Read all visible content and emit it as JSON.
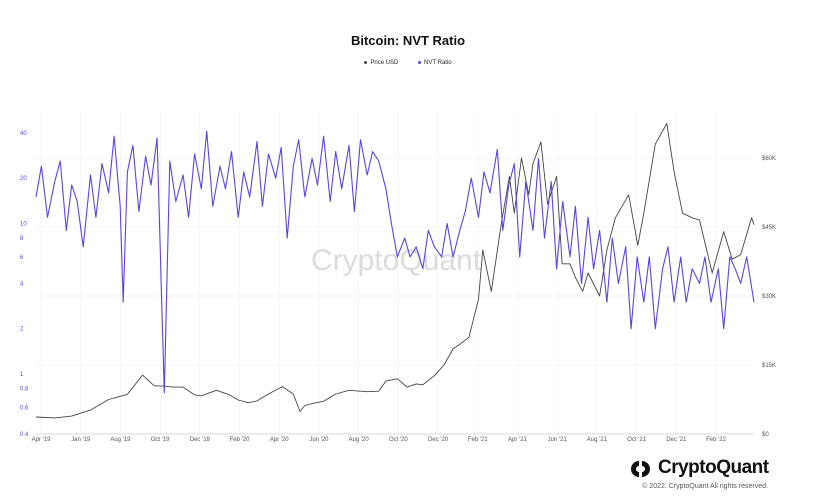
{
  "colors": {
    "nvt": "#5b44e0",
    "price": "#444444",
    "left_axis_text": "#5b44e0",
    "right_axis_text": "#555555",
    "grid": "#ececec",
    "watermark": "#dcdcdc"
  },
  "watermark": "CryptoQuant",
  "brand": {
    "name": "CryptoQuant",
    "icon": "cryptoquant-logo-icon"
  },
  "copyright": "© 2022. CryptoQuant All rights reserved.",
  "chart_data": {
    "type": "line",
    "title": "Bitcoin: NVT Ratio",
    "legend_position": "top-center",
    "grid": true,
    "x_ticks": [
      "Apr '19",
      "Jan '19",
      "Aug '19",
      "Oct '19",
      "Dec '19",
      "Feb '20",
      "Apr '20",
      "Jun '20",
      "Aug '20",
      "Oct '20",
      "Dec '20",
      "Feb '21",
      "Apr '21",
      "Jun '21",
      "Aug '21",
      "Oct '21",
      "Dec '21",
      "Feb '22"
    ],
    "x_range": [
      "2019-01-01",
      "2022-04-01"
    ],
    "left_axis": {
      "scale": "log",
      "ticks": [
        "0.4",
        "0.6",
        "0.8",
        "1",
        "2",
        "4",
        "6",
        "8",
        "10",
        "20",
        "40"
      ],
      "range": [
        0.4,
        55
      ]
    },
    "right_axis": {
      "scale": "linear",
      "ticks": [
        "$0",
        "$15K",
        "$30K",
        "$45K",
        "$60K"
      ],
      "range": [
        0,
        70000
      ]
    },
    "series": [
      {
        "name": "Price USD",
        "axis": "right",
        "x": [
          "2019-01-01",
          "2019-02-01",
          "2019-03-01",
          "2019-04-01",
          "2019-05-01",
          "2019-05-15",
          "2019-06-01",
          "2019-06-26",
          "2019-07-15",
          "2019-08-01",
          "2019-08-15",
          "2019-09-01",
          "2019-09-20",
          "2019-10-01",
          "2019-10-26",
          "2019-11-15",
          "2019-12-01",
          "2019-12-18",
          "2020-01-01",
          "2020-01-20",
          "2020-02-12",
          "2020-03-01",
          "2020-03-12",
          "2020-03-20",
          "2020-04-01",
          "2020-04-20",
          "2020-05-10",
          "2020-06-01",
          "2020-06-20",
          "2020-07-01",
          "2020-07-20",
          "2020-08-01",
          "2020-08-20",
          "2020-09-05",
          "2020-09-20",
          "2020-10-01",
          "2020-10-21",
          "2020-11-05",
          "2020-11-20",
          "2020-12-01",
          "2020-12-16",
          "2021-01-01",
          "2021-01-08",
          "2021-01-22",
          "2021-02-08",
          "2021-02-21",
          "2021-03-01",
          "2021-03-13",
          "2021-03-25",
          "2021-04-01",
          "2021-04-14",
          "2021-04-25",
          "2021-05-10",
          "2021-05-19",
          "2021-06-01",
          "2021-06-10",
          "2021-06-22",
          "2021-07-01",
          "2021-07-20",
          "2021-08-01",
          "2021-08-15",
          "2021-09-06",
          "2021-09-21",
          "2021-10-01",
          "2021-10-20",
          "2021-11-08",
          "2021-11-20",
          "2021-12-04",
          "2021-12-20",
          "2022-01-01",
          "2022-01-22",
          "2022-02-10",
          "2022-02-24",
          "2022-03-10",
          "2022-03-28",
          "2022-04-01"
        ],
        "values": [
          3700,
          3500,
          3900,
          5200,
          7500,
          8000,
          8600,
          12800,
          10500,
          10400,
          10200,
          10200,
          8500,
          8300,
          9500,
          8600,
          7400,
          6800,
          7200,
          8700,
          10300,
          8700,
          4900,
          6200,
          6600,
          7100,
          8700,
          9500,
          9300,
          9200,
          9300,
          11500,
          12000,
          10200,
          10900,
          10700,
          12800,
          15000,
          18500,
          19500,
          21000,
          29300,
          40000,
          31000,
          46000,
          56000,
          48000,
          60000,
          52000,
          58800,
          63500,
          50000,
          56000,
          37000,
          37000,
          34000,
          31000,
          35000,
          30000,
          40000,
          47000,
          52000,
          41000,
          48000,
          63000,
          67500,
          57000,
          48000,
          47000,
          46500,
          35000,
          44000,
          38000,
          39000,
          47000,
          45500
        ]
      },
      {
        "name": "NVT Ratio",
        "axis": "left",
        "x": [
          "2019-01-01",
          "2019-01-10",
          "2019-01-20",
          "2019-02-01",
          "2019-02-10",
          "2019-02-20",
          "2019-03-01",
          "2019-03-10",
          "2019-03-20",
          "2019-04-01",
          "2019-04-10",
          "2019-04-20",
          "2019-05-01",
          "2019-05-10",
          "2019-05-20",
          "2019-05-25",
          "2019-06-01",
          "2019-06-10",
          "2019-06-20",
          "2019-07-01",
          "2019-07-10",
          "2019-07-20",
          "2019-08-01",
          "2019-08-10",
          "2019-08-20",
          "2019-09-01",
          "2019-09-10",
          "2019-09-20",
          "2019-10-01",
          "2019-10-10",
          "2019-10-20",
          "2019-11-01",
          "2019-11-10",
          "2019-11-20",
          "2019-12-01",
          "2019-12-10",
          "2019-12-20",
          "2020-01-01",
          "2020-01-10",
          "2020-01-20",
          "2020-02-01",
          "2020-02-10",
          "2020-02-20",
          "2020-03-01",
          "2020-03-10",
          "2020-03-20",
          "2020-04-01",
          "2020-04-10",
          "2020-04-20",
          "2020-05-01",
          "2020-05-10",
          "2020-05-20",
          "2020-06-01",
          "2020-06-10",
          "2020-06-20",
          "2020-07-01",
          "2020-07-10",
          "2020-07-20",
          "2020-08-01",
          "2020-08-10",
          "2020-08-20",
          "2020-09-01",
          "2020-09-10",
          "2020-09-20",
          "2020-10-01",
          "2020-10-10",
          "2020-10-20",
          "2020-11-01",
          "2020-11-10",
          "2020-11-20",
          "2020-12-01",
          "2020-12-10",
          "2020-12-20",
          "2021-01-01",
          "2021-01-10",
          "2021-01-20",
          "2021-02-01",
          "2021-02-10",
          "2021-02-20",
          "2021-03-01",
          "2021-03-10",
          "2021-03-20",
          "2021-04-01",
          "2021-04-10",
          "2021-04-20",
          "2021-05-01",
          "2021-05-10",
          "2021-05-20",
          "2021-06-01",
          "2021-06-10",
          "2021-06-20",
          "2021-07-01",
          "2021-07-10",
          "2021-07-20",
          "2021-08-01",
          "2021-08-10",
          "2021-08-20",
          "2021-09-01",
          "2021-09-10",
          "2021-09-20",
          "2021-10-01",
          "2021-10-10",
          "2021-10-20",
          "2021-11-01",
          "2021-11-10",
          "2021-11-20",
          "2021-12-01",
          "2021-12-10",
          "2021-12-20",
          "2022-01-01",
          "2022-01-10",
          "2022-01-20",
          "2022-02-01",
          "2022-02-10",
          "2022-02-20",
          "2022-03-01",
          "2022-03-10",
          "2022-03-20",
          "2022-04-01"
        ],
        "values": [
          15,
          24,
          11,
          19,
          26,
          9,
          18,
          14,
          7,
          21,
          11,
          25,
          16,
          38,
          13,
          3,
          22,
          33,
          12,
          28,
          18,
          37,
          0.75,
          26,
          14,
          21,
          11,
          29,
          17,
          41,
          13,
          24,
          17,
          30,
          11,
          22,
          15,
          35,
          13,
          29,
          20,
          32,
          8,
          24,
          36,
          15,
          27,
          18,
          38,
          14,
          30,
          17,
          33,
          12,
          36,
          21,
          30,
          26,
          17,
          10,
          6,
          8,
          6,
          7,
          5,
          9,
          7,
          6,
          10,
          6,
          9,
          12,
          20,
          11,
          22,
          16,
          31,
          9,
          18,
          25,
          6,
          19,
          9,
          27,
          8,
          19,
          5,
          14,
          6,
          13,
          4,
          11,
          5,
          9,
          3,
          8,
          4,
          7,
          2,
          6,
          3,
          6,
          2,
          5,
          7,
          3,
          6,
          3,
          5,
          4,
          6,
          3,
          5,
          2,
          6,
          5,
          4,
          6,
          3
        ]
      }
    ]
  }
}
